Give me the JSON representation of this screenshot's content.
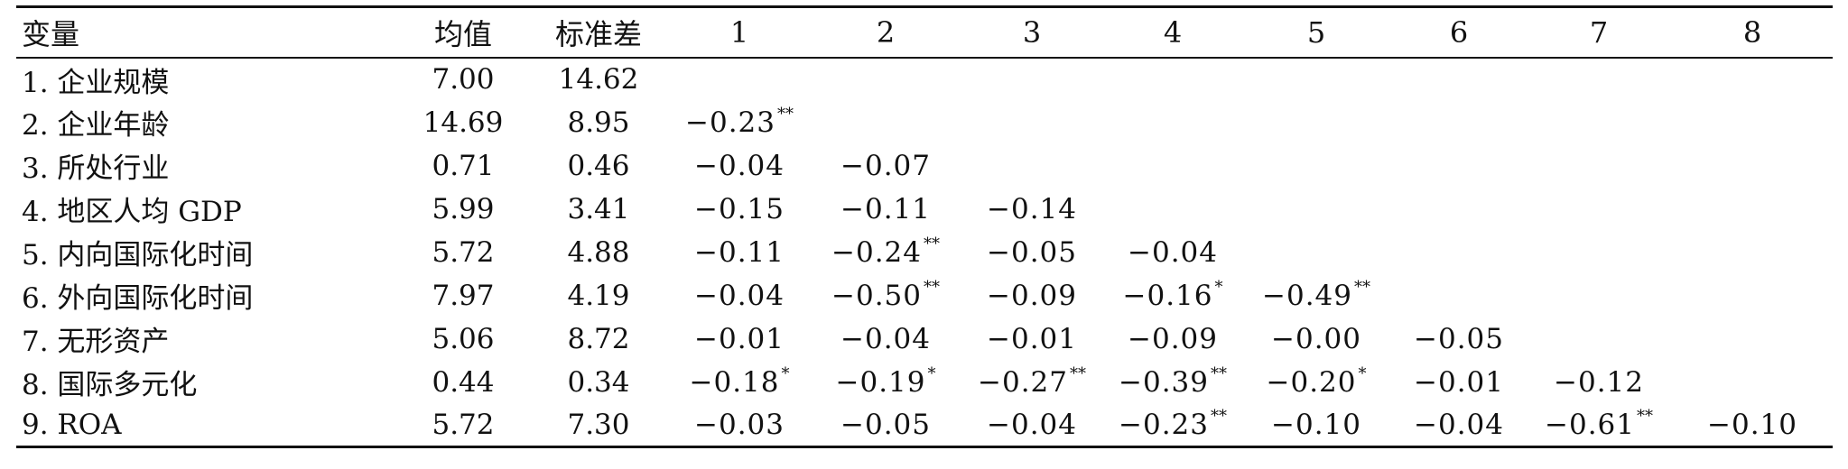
{
  "table": {
    "headers": [
      "变量",
      "均值",
      "标准差",
      "1",
      "2",
      "3",
      "4",
      "5",
      "6",
      "7",
      "8"
    ],
    "rows": [
      {
        "label": "1. 企业规模",
        "mean": "7.00",
        "sd": "14.62",
        "cells": []
      },
      {
        "label": "2. 企业年龄",
        "mean": "14.69",
        "sd": "8.95",
        "cells": [
          {
            "v": "−0.23",
            "sig": "**"
          }
        ]
      },
      {
        "label": "3. 所处行业",
        "mean": "0.71",
        "sd": "0.46",
        "cells": [
          {
            "v": "−0.04",
            "sig": ""
          },
          {
            "v": "−0.07",
            "sig": ""
          }
        ]
      },
      {
        "label": "4. 地区人均 GDP",
        "mean": "5.99",
        "sd": "3.41",
        "cells": [
          {
            "v": "−0.15",
            "sig": ""
          },
          {
            "v": "−0.11",
            "sig": ""
          },
          {
            "v": "−0.14",
            "sig": ""
          }
        ]
      },
      {
        "label": "5. 内向国际化时间",
        "mean": "5.72",
        "sd": "4.88",
        "cells": [
          {
            "v": "−0.11",
            "sig": ""
          },
          {
            "v": "−0.24",
            "sig": "**"
          },
          {
            "v": "−0.05",
            "sig": ""
          },
          {
            "v": "−0.04",
            "sig": ""
          }
        ]
      },
      {
        "label": "6. 外向国际化时间",
        "mean": "7.97",
        "sd": "4.19",
        "cells": [
          {
            "v": "−0.04",
            "sig": ""
          },
          {
            "v": "−0.50",
            "sig": "**"
          },
          {
            "v": "−0.09",
            "sig": ""
          },
          {
            "v": "−0.16",
            "sig": "*"
          },
          {
            "v": "−0.49",
            "sig": "**"
          }
        ]
      },
      {
        "label": "7. 无形资产",
        "mean": "5.06",
        "sd": "8.72",
        "cells": [
          {
            "v": "−0.01",
            "sig": ""
          },
          {
            "v": "−0.04",
            "sig": ""
          },
          {
            "v": "−0.01",
            "sig": ""
          },
          {
            "v": "−0.09",
            "sig": ""
          },
          {
            "v": "−0.00",
            "sig": ""
          },
          {
            "v": "−0.05",
            "sig": ""
          }
        ]
      },
      {
        "label": "8. 国际多元化",
        "mean": "0.44",
        "sd": "0.34",
        "cells": [
          {
            "v": "−0.18",
            "sig": "*"
          },
          {
            "v": "−0.19",
            "sig": "*"
          },
          {
            "v": "−0.27",
            "sig": "**"
          },
          {
            "v": "−0.39",
            "sig": "**"
          },
          {
            "v": "−0.20",
            "sig": "*"
          },
          {
            "v": "−0.01",
            "sig": ""
          },
          {
            "v": "−0.12",
            "sig": ""
          }
        ]
      },
      {
        "label": "9. ROA",
        "mean": "5.72",
        "sd": "7.30",
        "cells": [
          {
            "v": "−0.03",
            "sig": ""
          },
          {
            "v": "−0.05",
            "sig": ""
          },
          {
            "v": "−0.04",
            "sig": ""
          },
          {
            "v": "−0.23",
            "sig": "**"
          },
          {
            "v": "−0.10",
            "sig": ""
          },
          {
            "v": "−0.04",
            "sig": ""
          },
          {
            "v": "−0.61",
            "sig": "**"
          },
          {
            "v": "−0.10",
            "sig": ""
          }
        ]
      }
    ]
  }
}
